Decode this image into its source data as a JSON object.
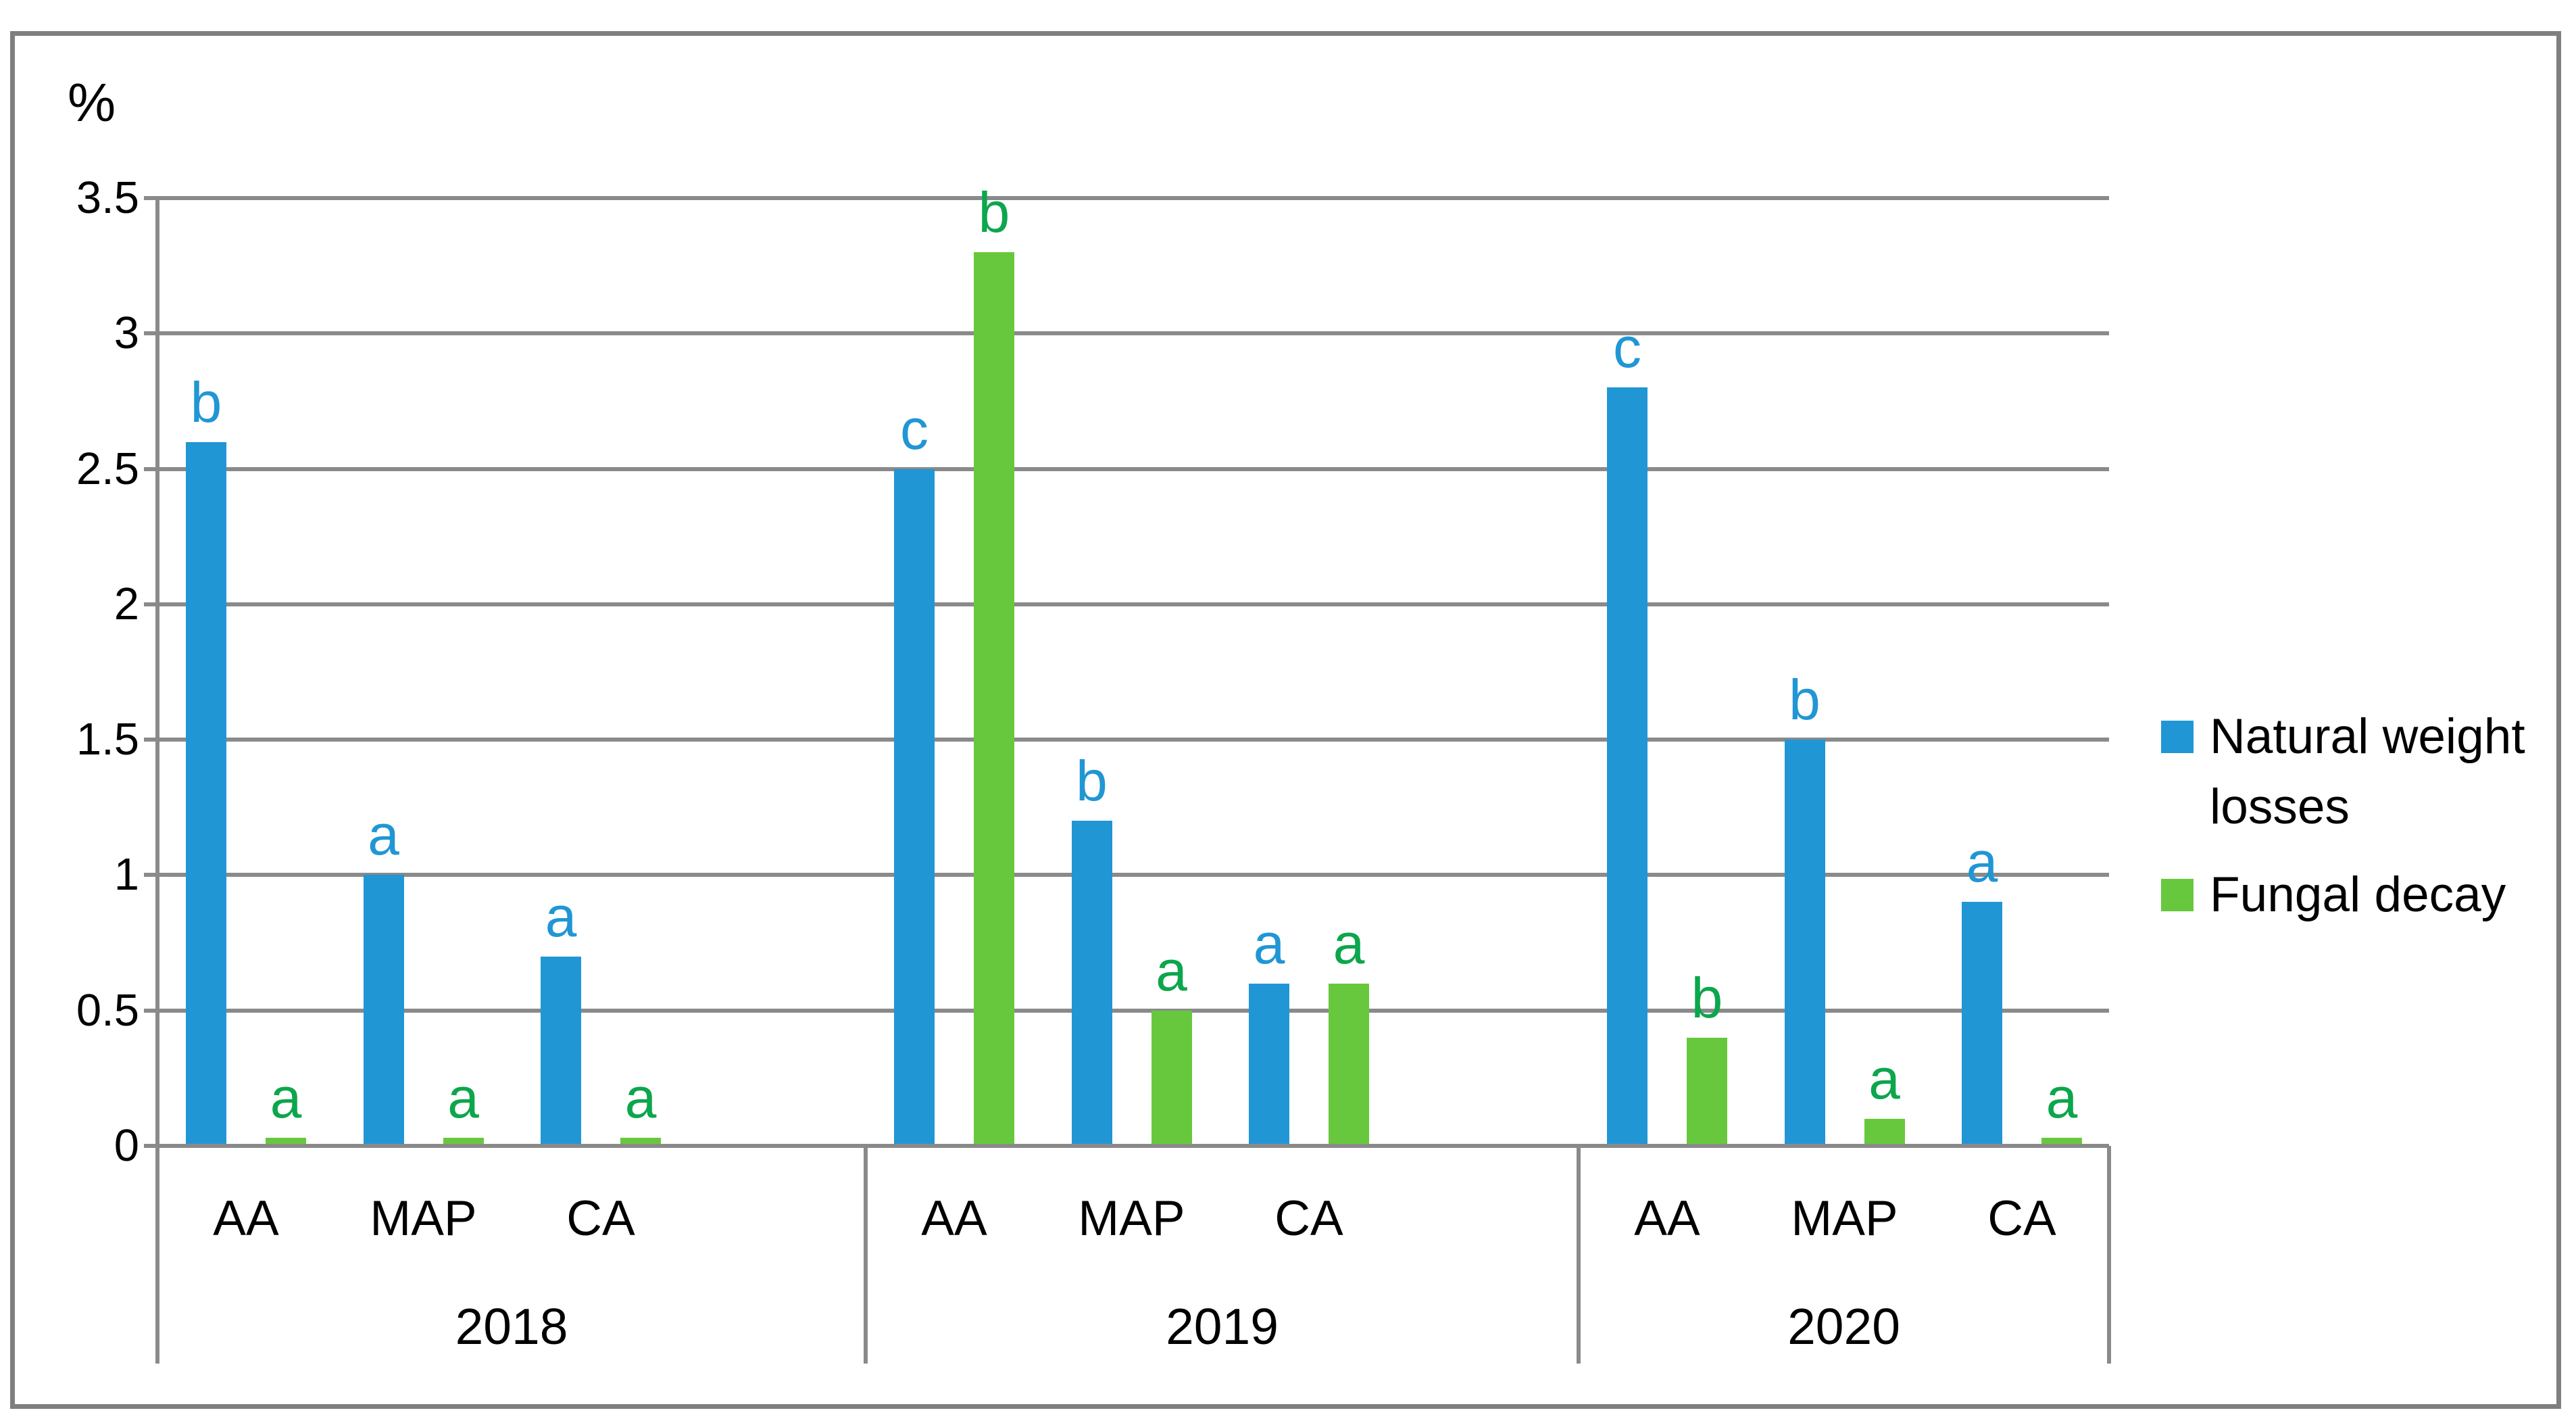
{
  "figure": {
    "axis_unit_label": "%"
  },
  "chart_data": {
    "type": "bar",
    "title": "",
    "ylabel": "%",
    "xlabel": "",
    "ylim": [
      0,
      3.5
    ],
    "ytick_step": 0.5,
    "ytick_labels": [
      "3.5",
      "3",
      "2.5",
      "2",
      "1.5",
      "1",
      "0.5",
      "0"
    ],
    "grid": true,
    "legend_position": "right",
    "group_labels": [
      "2018",
      "2019",
      "2020"
    ],
    "categories_per_group": [
      "AA",
      "MAP",
      "CA"
    ],
    "series": [
      {
        "name": "Natural weight losses",
        "color": "#2196d5",
        "letter_color": "#2196d5",
        "values": [
          2.6,
          1.0,
          0.7,
          2.5,
          1.2,
          0.6,
          2.8,
          1.5,
          0.9
        ],
        "sig_letters": [
          "b",
          "a",
          "a",
          "c",
          "b",
          "a",
          "c",
          "b",
          "a"
        ]
      },
      {
        "name": "Fungal decay",
        "color": "#68c83d",
        "letter_color": "#0ca64c",
        "values": [
          0.03,
          0.03,
          0.03,
          3.3,
          0.5,
          0.6,
          0.4,
          0.1,
          0.03
        ],
        "sig_letters": [
          "a",
          "a",
          "a",
          "b",
          "a",
          "a",
          "b",
          "a",
          "a"
        ]
      }
    ],
    "line_color": "#8a8a8a"
  }
}
